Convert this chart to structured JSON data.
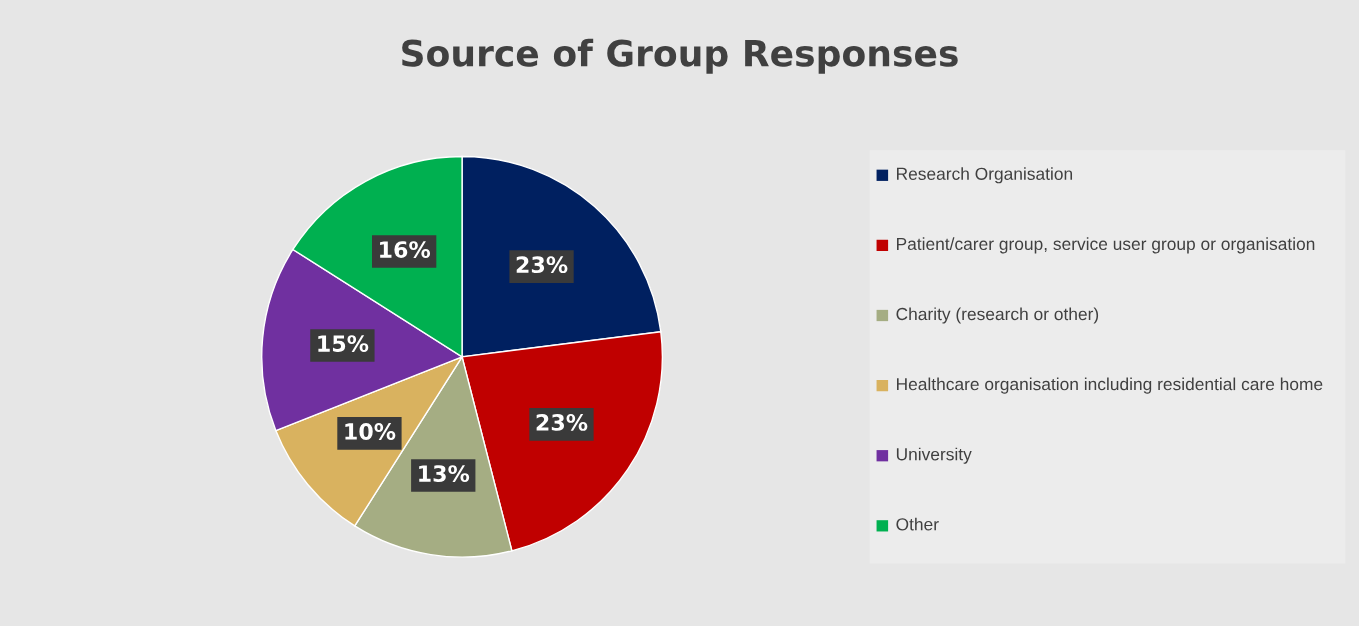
{
  "chart_data": {
    "type": "pie",
    "title": "Source of Group Responses",
    "categories": [
      "Research Organisation",
      "Patient/carer group, service user group or organisation",
      "Charity (research or other)",
      "Healthcare organisation including residential care home",
      "University",
      "Other"
    ],
    "values": [
      23,
      23,
      13,
      10,
      15,
      16
    ],
    "value_labels": [
      "23%",
      "23%",
      "13%",
      "10%",
      "15%",
      "16%"
    ],
    "colors": [
      "#002060",
      "#c00000",
      "#a5ad83",
      "#d9b25f",
      "#7030a0",
      "#00b050"
    ],
    "legend": "right"
  }
}
